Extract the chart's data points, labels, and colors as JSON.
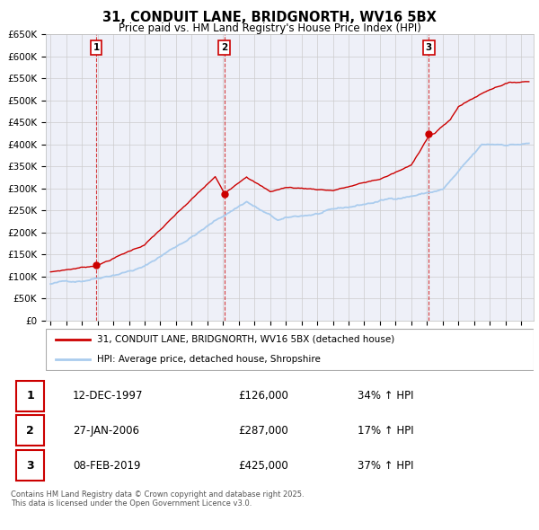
{
  "title": "31, CONDUIT LANE, BRIDGNORTH, WV16 5BX",
  "subtitle": "Price paid vs. HM Land Registry's House Price Index (HPI)",
  "ylim": [
    0,
    650000
  ],
  "yticks": [
    0,
    50000,
    100000,
    150000,
    200000,
    250000,
    300000,
    350000,
    400000,
    450000,
    500000,
    550000,
    600000,
    650000
  ],
  "ytick_labels": [
    "£0",
    "£50K",
    "£100K",
    "£150K",
    "£200K",
    "£250K",
    "£300K",
    "£350K",
    "£400K",
    "£450K",
    "£500K",
    "£550K",
    "£600K",
    "£650K"
  ],
  "sales": [
    {
      "num": 1,
      "date": "12-DEC-1997",
      "price": 126000,
      "year": 1997.92,
      "hpi_pct": "34%",
      "hpi_dir": "↑"
    },
    {
      "num": 2,
      "date": "27-JAN-2006",
      "price": 287000,
      "year": 2006.08,
      "hpi_pct": "17%",
      "hpi_dir": "↑"
    },
    {
      "num": 3,
      "date": "08-FEB-2019",
      "price": 425000,
      "year": 2019.12,
      "hpi_pct": "37%",
      "hpi_dir": "↑"
    }
  ],
  "legend_line1": "31, CONDUIT LANE, BRIDGNORTH, WV16 5BX (detached house)",
  "legend_line2": "HPI: Average price, detached house, Shropshire",
  "footnote": "Contains HM Land Registry data © Crown copyright and database right 2025.\nThis data is licensed under the Open Government Licence v3.0.",
  "red_color": "#cc0000",
  "blue_color": "#aaccee",
  "grid_color": "#cccccc",
  "background_color": "#ffffff",
  "plot_bg_color": "#eef0f8"
}
